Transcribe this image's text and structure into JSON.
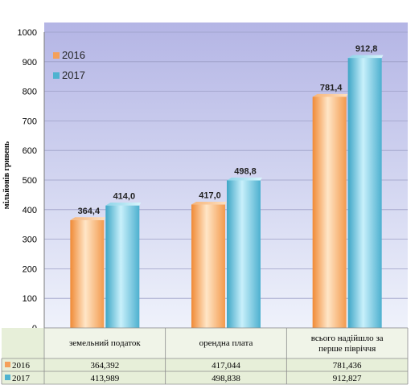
{
  "chart_data": {
    "type": "bar",
    "ylabel": "мільйонів гривень",
    "ylim": [
      0,
      1000
    ],
    "yticks": [
      0,
      100,
      200,
      300,
      400,
      500,
      600,
      700,
      800,
      900,
      1000
    ],
    "categories": [
      [
        "земельний податок"
      ],
      [
        "орендна плата"
      ],
      [
        "всього надійшло за",
        "перше півріччя"
      ]
    ],
    "series": [
      {
        "name": "2016",
        "values": [
          364.4,
          417.0,
          781.4
        ],
        "labels": [
          "364,4",
          "417,0",
          "781,4"
        ],
        "table_values": [
          "364,392",
          "417,044",
          "781,436"
        ],
        "color": "#f5a05a"
      },
      {
        "name": "2017",
        "values": [
          414.0,
          498.8,
          912.8
        ],
        "labels": [
          "414,0",
          "498,8",
          "912,8"
        ],
        "table_values": [
          "413,989",
          "498,838",
          "912,827"
        ],
        "color": "#4fb3d0"
      }
    ],
    "grid": true,
    "legend_position": "top-left",
    "colors": {
      "plot_bg_top": "#b7b8e6",
      "plot_bg_bottom": "#eef1fa",
      "table_bg": "#e6eed8",
      "frame": "#8a8a8a"
    }
  }
}
